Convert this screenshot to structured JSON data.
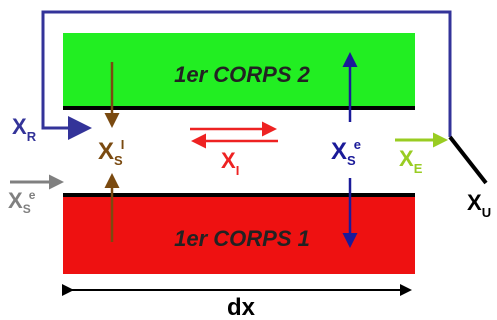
{
  "bodies": {
    "top": {
      "label": "1er CORPS 2",
      "color": "#22ee22"
    },
    "bottom": {
      "label": "1er CORPS 1",
      "color": "#ee1111"
    }
  },
  "labels": {
    "xr": {
      "main": "X",
      "sub": "R",
      "color": "#333399"
    },
    "xs_i": {
      "main": "X",
      "sub": "S",
      "sup": "I",
      "color": "#7a4a10"
    },
    "xi": {
      "main": "X",
      "sub": "I",
      "color": "#ee2222"
    },
    "xs_e_right": {
      "main": "X",
      "sub": "S",
      "sup": "e",
      "color": "#1a1a99"
    },
    "xe": {
      "main": "X",
      "sub": "E",
      "color": "#99cc22"
    },
    "xu": {
      "main": "X",
      "sub": "U",
      "color": "#000000"
    },
    "xs_e_left": {
      "main": "X",
      "sub": "S",
      "sup": "e",
      "color": "#808080"
    },
    "dx": "dx"
  },
  "colors": {
    "loop": "#333399",
    "interface": "#000000",
    "dimension": "#000000"
  }
}
